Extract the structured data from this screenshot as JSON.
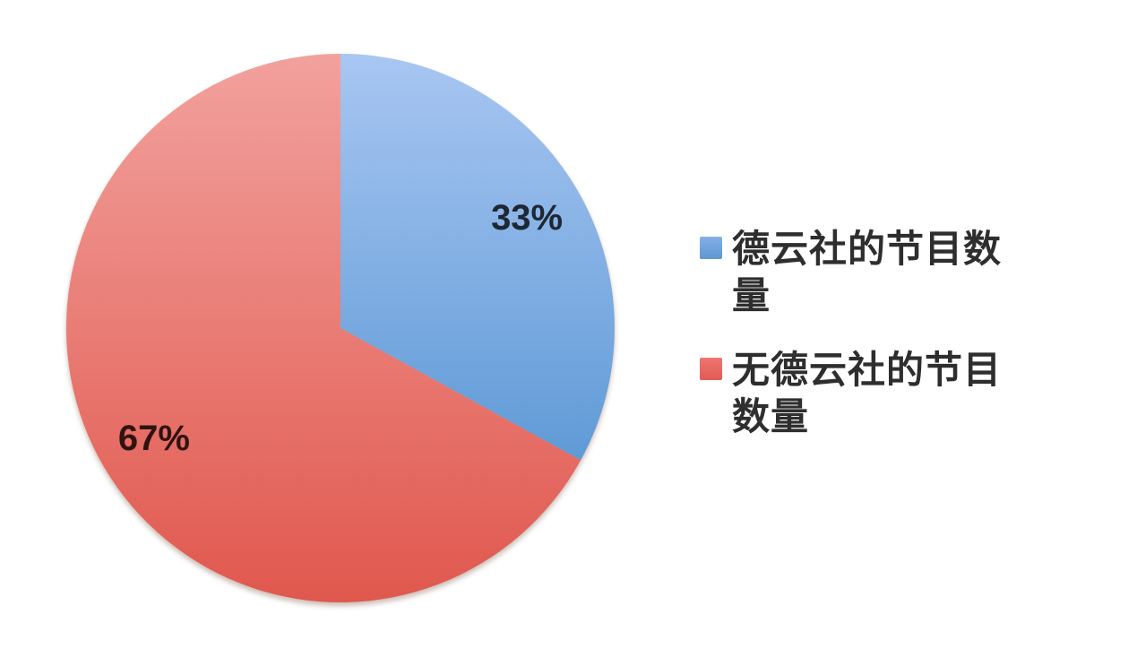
{
  "chart_data": {
    "type": "pie",
    "title": "",
    "labels": [
      "德云社的节目数量",
      "无德云社的节目数量"
    ],
    "values": [
      33,
      67
    ],
    "data_labels": [
      "33%",
      "67%"
    ],
    "unit": "%",
    "start_angle": "12-oclock",
    "direction": "clockwise",
    "legend_position": "right",
    "background": "#ffffff",
    "colors": {
      "blue_top": "#a8c6f2",
      "blue_bottom": "#5896d3",
      "red_top": "#f2a19d",
      "red_bottom": "#e0584e",
      "label_blue_text": "#1e2733",
      "label_red_text": "#30130f",
      "legend_text": "#2e2e2e"
    },
    "legend_swatches": [
      {
        "top": "#86b0e6",
        "bottom": "#5d97d4"
      },
      {
        "top": "#ef7570",
        "bottom": "#e25b53"
      }
    ]
  }
}
